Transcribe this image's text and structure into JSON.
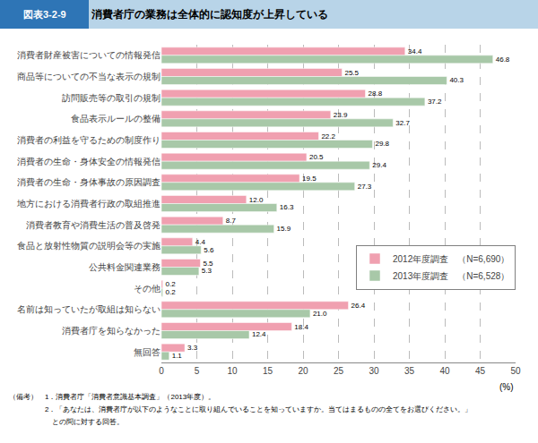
{
  "chart_data": {
    "type": "bar",
    "orientation": "horizontal",
    "title": "消費者庁の業務は全体的に認知度が上昇している",
    "annotations": [
      "図表3-2-9",
      "（備考）　1．消費者庁「消費者意識基本調査」（2013年度）。",
      "　　　　　2．「あなたは、消費者庁が以下のようなことに取り組んでいることを知っていますか。当てはまるものの全てをお選びください。」",
      "　　　　　　との問に対する回答。"
    ],
    "xlabel": "(%)",
    "categories": [
      "消費者財産被害についての情報発信",
      "商品等についての不当な表示の規制",
      "訪問販売等の取引の規制",
      "食品表示ルールの整備",
      "消費者の利益を守るための制度作り",
      "消費者の生命・身体安全の情報発信",
      "消費者の生命・身体事故の原因調査",
      "地方における消費者行政の取組推進",
      "消費者教育や消費生活の普及啓発",
      "食品と放射性物質の説明会等の実施",
      "公共料金関連業務",
      "その他",
      "名前は知っていたが取組は知らない",
      "消費者庁を知らなかった",
      "無回答"
    ],
    "series": [
      {
        "name": "2012年度調査　（N=6,690）",
        "color": "#f0a0b0",
        "values": [
          34.4,
          25.5,
          28.8,
          23.9,
          22.2,
          20.5,
          19.5,
          12.0,
          8.7,
          4.4,
          5.5,
          0.2,
          26.4,
          18.4,
          3.3
        ],
        "value_labels": [
          "34.4",
          "25.5",
          "28.8",
          "23.9",
          "22.2",
          "20.5",
          "19.5",
          "12.0",
          "8.7",
          "4.4",
          "5.5",
          "0.2",
          "26.4",
          "18.4",
          "3.3"
        ]
      },
      {
        "name": "2013年度調査　（N=6,528）",
        "color": "#a8c8a8",
        "values": [
          46.8,
          40.3,
          37.2,
          32.7,
          29.8,
          29.4,
          27.3,
          16.3,
          15.9,
          5.6,
          5.3,
          0.2,
          21.0,
          12.4,
          1.1
        ],
        "value_labels": [
          "46.8",
          "40.3",
          "37.2",
          "32.7",
          "29.8",
          "29.4",
          "27.3",
          "16.3",
          "15.9",
          "5.6",
          "5.3",
          "0.2",
          "21.0",
          "12.4",
          "1.1"
        ]
      }
    ],
    "xlim": [
      0,
      50
    ],
    "xticks": [
      0,
      5,
      10,
      15,
      20,
      25,
      30,
      35,
      40,
      45,
      50
    ],
    "grid": true,
    "legend": "right",
    "data_labels": true
  }
}
